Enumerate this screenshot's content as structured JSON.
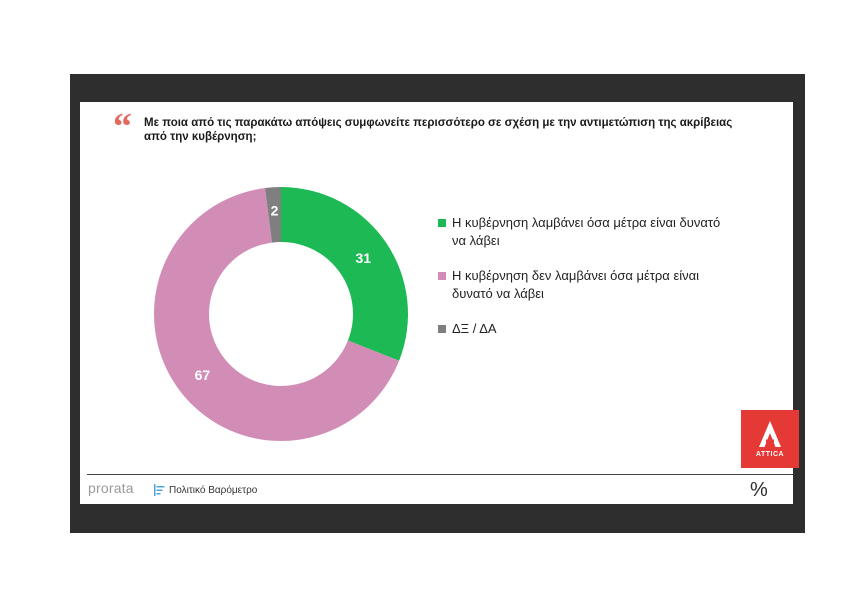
{
  "question": "Με ποια από τις παρακάτω απόψεις συμφωνείτε περισσότερο σε σχέση με την αντιμετώπιση της ακρίβειας από την κυβέρνηση;",
  "footer": {
    "brand": "prorata",
    "subtitle": "Πολιτικό Βαρόμετρο",
    "percent_symbol": "%"
  },
  "logo": {
    "text": "ATTICA",
    "color": "#e53935"
  },
  "chart_data": {
    "type": "pie",
    "variant": "donut",
    "title": "Με ποια από τις παρακάτω απόψεις συμφωνείτε περισσότερο σε σχέση με την αντιμετώπιση της ακρίβειας από την κυβέρνηση;",
    "categories": [
      "Η κυβέρνηση λαμβάνει όσα μέτρα είναι δυνατό να λάβει",
      "Η κυβέρνηση δεν λαμβάνει όσα μέτρα είναι δυνατό να λάβει",
      "ΔΞ / ΔΑ"
    ],
    "values": [
      31,
      67,
      2
    ],
    "data_labels": [
      "31",
      "67",
      "2"
    ],
    "colors": [
      "#1db954",
      "#d28db7",
      "#7f7f7f"
    ],
    "legend_position": "right"
  }
}
